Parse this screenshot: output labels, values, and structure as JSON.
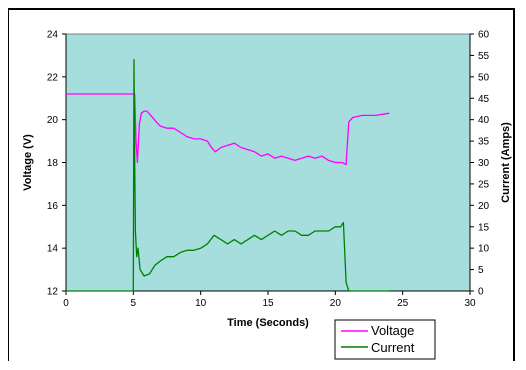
{
  "chart_data": {
    "type": "line",
    "xlabel": "Time (Seconds)",
    "ylabel_left": "Voltage (V)",
    "ylabel_right": "Current (Amps)",
    "xlim": [
      0,
      30
    ],
    "ylim_left": [
      12,
      24
    ],
    "ylim_right": [
      0,
      60
    ],
    "x_ticks": [
      0,
      5,
      10,
      15,
      20,
      25,
      30
    ],
    "y_left_ticks": [
      12,
      14,
      16,
      18,
      20,
      22,
      24
    ],
    "y_right_ticks": [
      0,
      5,
      10,
      15,
      20,
      25,
      30,
      35,
      40,
      45,
      50,
      55,
      60
    ],
    "grid": false,
    "legend_position": "bottom-right outside",
    "plot_background": "#a6dede",
    "series": [
      {
        "name": "Voltage",
        "axis": "left",
        "color": "#ff00ff",
        "x": [
          0,
          1,
          2,
          3,
          4,
          5.1,
          5.2,
          5.3,
          5.45,
          5.6,
          5.8,
          6.0,
          6.3,
          6.7,
          7.0,
          7.5,
          8.0,
          8.5,
          9.0,
          9.5,
          10.0,
          10.5,
          10.8,
          11.1,
          11.5,
          12.0,
          12.5,
          13.0,
          13.5,
          14.0,
          14.5,
          15.0,
          15.5,
          16.0,
          16.5,
          17.0,
          17.5,
          18.0,
          18.5,
          19.0,
          19.5,
          20.0,
          20.5,
          20.8,
          21.0,
          21.3,
          22.0,
          23.0,
          24.0
        ],
        "y": [
          21.2,
          21.2,
          21.2,
          21.2,
          21.2,
          21.2,
          19.0,
          18.0,
          19.8,
          20.3,
          20.4,
          20.4,
          20.2,
          19.9,
          19.7,
          19.6,
          19.6,
          19.4,
          19.2,
          19.1,
          19.1,
          19.0,
          18.7,
          18.5,
          18.7,
          18.8,
          18.9,
          18.7,
          18.6,
          18.5,
          18.3,
          18.4,
          18.2,
          18.3,
          18.2,
          18.1,
          18.2,
          18.3,
          18.2,
          18.3,
          18.1,
          18.0,
          18.0,
          17.9,
          19.9,
          20.1,
          20.2,
          20.2,
          20.3
        ]
      },
      {
        "name": "Current",
        "axis": "right",
        "color": "#008000",
        "x": [
          0,
          1,
          2,
          3,
          4,
          5.0,
          5.05,
          5.1,
          5.15,
          5.25,
          5.35,
          5.5,
          5.8,
          6.2,
          6.6,
          7.0,
          7.5,
          8.0,
          8.5,
          9.0,
          9.5,
          10.0,
          10.5,
          11.0,
          11.5,
          12.0,
          12.5,
          13.0,
          13.5,
          14.0,
          14.5,
          15.0,
          15.5,
          16.0,
          16.5,
          17.0,
          17.5,
          18.0,
          18.5,
          19.0,
          19.5,
          20.0,
          20.4,
          20.6,
          20.8,
          21.0,
          21.2,
          22.0,
          23.0,
          24.0
        ],
        "y": [
          0,
          0,
          0,
          0,
          0,
          0,
          54,
          30,
          14,
          8,
          10,
          5,
          3.5,
          4,
          6,
          7,
          8,
          8,
          9,
          9.5,
          9.5,
          10,
          11,
          13,
          12,
          11,
          12,
          11,
          12,
          13,
          12,
          13,
          14,
          13,
          14,
          14,
          13,
          13,
          14,
          14,
          14,
          15,
          15,
          16,
          2,
          0,
          0,
          0,
          0,
          0
        ]
      }
    ]
  }
}
